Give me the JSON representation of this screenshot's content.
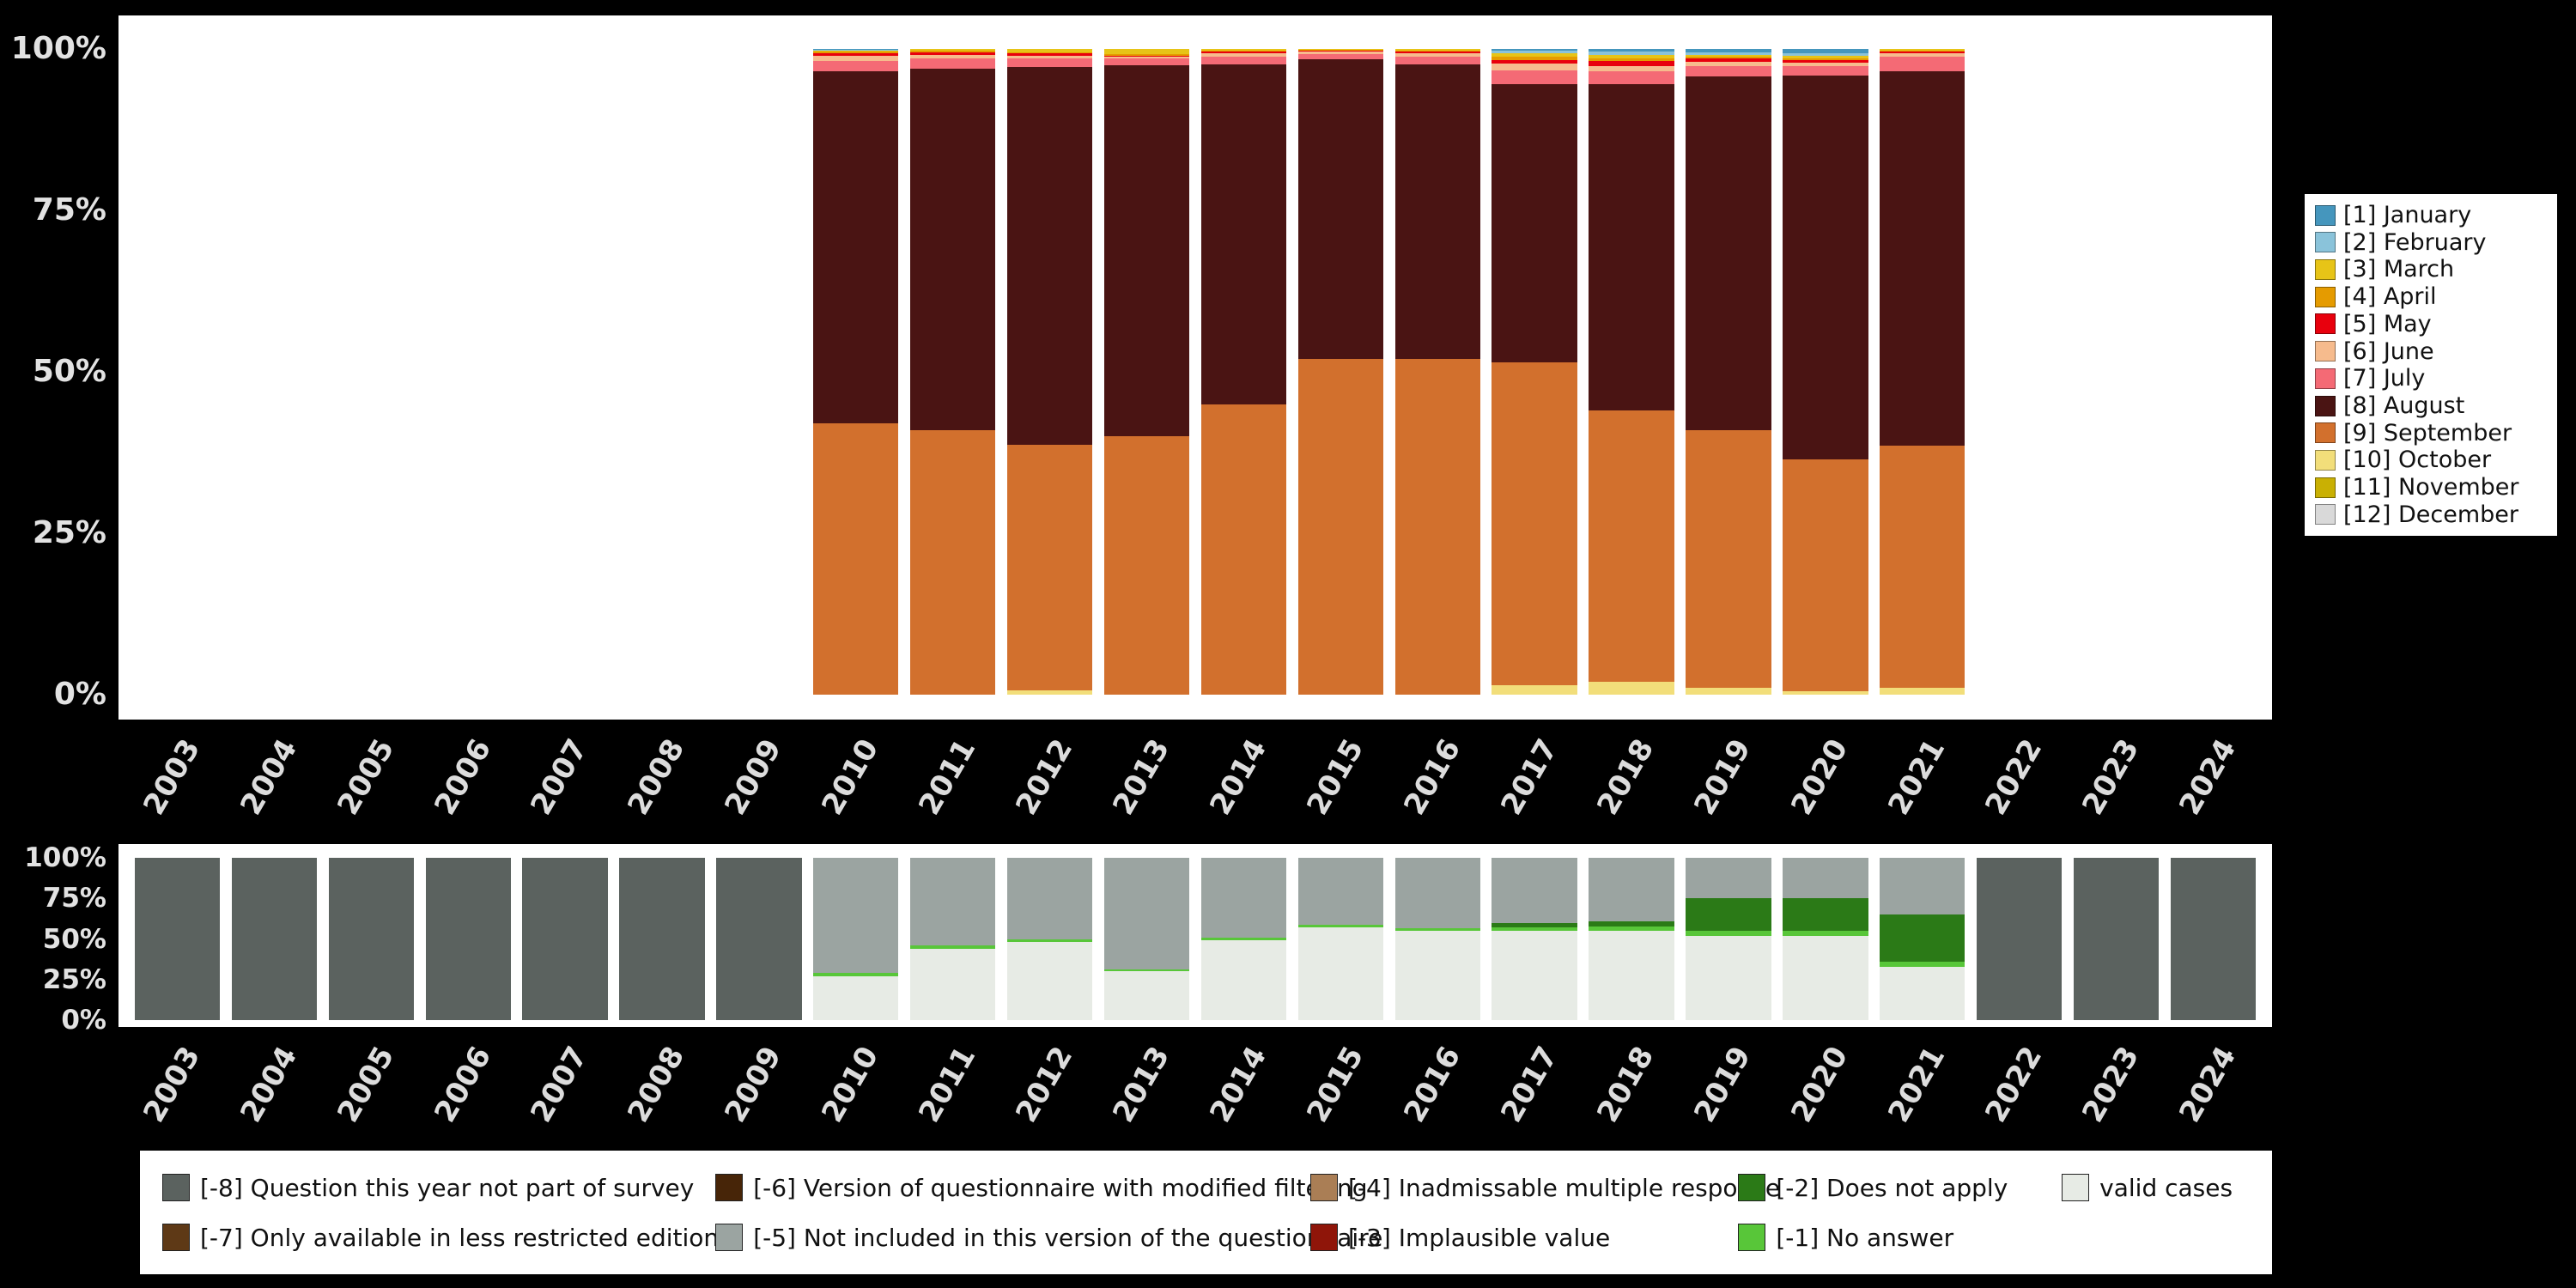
{
  "page": {
    "background": "#000000",
    "panel_background": "#ffffff",
    "axis_text_color": "#dcdcdc"
  },
  "chart_data": [
    {
      "id": "month-of-interview-by-year",
      "type": "bar",
      "stacked": true,
      "unit": "%",
      "ylim": [
        0,
        100
      ],
      "grid": false,
      "legend_position": "right",
      "y_ticks": [
        "100%",
        "75%",
        "50%",
        "25%",
        "0%"
      ],
      "categories": [
        "2003",
        "2004",
        "2005",
        "2006",
        "2007",
        "2008",
        "2009",
        "2010",
        "2011",
        "2012",
        "2013",
        "2014",
        "2015",
        "2016",
        "2017",
        "2018",
        "2019",
        "2020",
        "2021",
        "2022",
        "2023",
        "2024"
      ],
      "stack_order_bottom_to_top": [
        "[12] December",
        "[11] November",
        "[10] October",
        "[9] September",
        "[8] August",
        "[7] July",
        "[6] June",
        "[5] May",
        "[4] April",
        "[3] March",
        "[2] February",
        "[1] January"
      ],
      "series": [
        {
          "name": "[1] January",
          "color": "#4596bd",
          "values": [
            0,
            0,
            0,
            0,
            0,
            0,
            0,
            0.1,
            0,
            0,
            0,
            0,
            0,
            0,
            0.3,
            0.4,
            0.5,
            0.6,
            0,
            0,
            0,
            0
          ]
        },
        {
          "name": "[2] February",
          "color": "#8ac3da",
          "values": [
            0,
            0,
            0,
            0,
            0,
            0,
            0,
            0.1,
            0,
            0,
            0,
            0,
            0,
            0,
            0.4,
            0.5,
            0.4,
            0.5,
            0,
            0,
            0,
            0
          ]
        },
        {
          "name": "[3] March",
          "color": "#e7c417",
          "values": [
            0,
            0,
            0,
            0,
            0,
            0,
            0,
            0.2,
            0.2,
            0.5,
            0.8,
            0.2,
            0.1,
            0.2,
            0.5,
            0.5,
            0.3,
            0.3,
            0.2,
            0,
            0,
            0
          ]
        },
        {
          "name": "[4] April",
          "color": "#e59b00",
          "values": [
            0,
            0,
            0,
            0,
            0,
            0,
            0,
            0.3,
            0.3,
            0.2,
            0.2,
            0.2,
            0.1,
            0.2,
            0.5,
            0.5,
            0.3,
            0.3,
            0.2,
            0,
            0,
            0
          ]
        },
        {
          "name": "[5] May",
          "color": "#e8000d",
          "values": [
            0,
            0,
            0,
            0,
            0,
            0,
            0,
            0.4,
            0.4,
            0.3,
            0.2,
            0.3,
            0.2,
            0.3,
            0.6,
            0.7,
            0.5,
            0.4,
            0.3,
            0,
            0,
            0
          ]
        },
        {
          "name": "[6] June",
          "color": "#f6bb8d",
          "values": [
            0,
            0,
            0,
            0,
            0,
            0,
            0,
            0.7,
            0.6,
            0.4,
            0.3,
            0.5,
            0.4,
            0.5,
            1.0,
            0.8,
            0.7,
            0.6,
            0.5,
            0,
            0,
            0
          ]
        },
        {
          "name": "[7] July",
          "color": "#f46a75",
          "values": [
            0,
            0,
            0,
            0,
            0,
            0,
            0,
            1.7,
            1.5,
            1.4,
            1.0,
            1.2,
            0.8,
            1.2,
            2.2,
            2.1,
            1.6,
            1.4,
            2.3,
            0,
            0,
            0
          ]
        },
        {
          "name": "[8] August",
          "color": "#4a1413",
          "values": [
            0,
            0,
            0,
            0,
            0,
            0,
            0,
            54.5,
            56,
            58.5,
            57.5,
            52.6,
            46.4,
            45.6,
            43,
            50.5,
            54.7,
            59.4,
            58,
            0,
            0,
            0
          ]
        },
        {
          "name": "[9] September",
          "color": "#d2702d",
          "values": [
            0,
            0,
            0,
            0,
            0,
            0,
            0,
            42,
            41,
            38,
            40,
            45,
            52,
            52,
            50,
            42,
            40,
            36,
            37.5,
            0,
            0,
            0
          ]
        },
        {
          "name": "[10] October",
          "color": "#f2de7a",
          "values": [
            0,
            0,
            0,
            0,
            0,
            0,
            0,
            0,
            0,
            0.7,
            0,
            0,
            0,
            0,
            1.5,
            2,
            1,
            0.5,
            1,
            0,
            0,
            0
          ]
        },
        {
          "name": "[11] November",
          "color": "#c9b003",
          "values": [
            0,
            0,
            0,
            0,
            0,
            0,
            0,
            0,
            0,
            0,
            0,
            0,
            0,
            0,
            0,
            0,
            0,
            0,
            0,
            0,
            0,
            0
          ]
        },
        {
          "name": "[12] December",
          "color": "#d9d9d9",
          "values": [
            0,
            0,
            0,
            0,
            0,
            0,
            0,
            0,
            0,
            0,
            0,
            0,
            0,
            0,
            0,
            0,
            0,
            0,
            0,
            0,
            0,
            0
          ]
        }
      ]
    },
    {
      "id": "missing-values-by-year",
      "type": "bar",
      "stacked": true,
      "unit": "%",
      "ylim": [
        0,
        100
      ],
      "grid": false,
      "legend_position": "bottom",
      "y_ticks": [
        "100%",
        "75%",
        "50%",
        "25%",
        "0%"
      ],
      "categories": [
        "2003",
        "2004",
        "2005",
        "2006",
        "2007",
        "2008",
        "2009",
        "2010",
        "2011",
        "2012",
        "2013",
        "2014",
        "2015",
        "2016",
        "2017",
        "2018",
        "2019",
        "2020",
        "2021",
        "2022",
        "2023",
        "2024"
      ],
      "stack_order_bottom_to_top": [
        "valid cases",
        "[-1] No answer",
        "[-2] Does not apply",
        "[-3] Implausible value",
        "[-4] Inadmissable multiple response",
        "[-5] Not included in this version of the questionnaire",
        "[-6] Version of questionnaire with modified filtering",
        "[-7] Only available in less restricted edition",
        "[-8] Question this year not part of survey"
      ],
      "series": [
        {
          "name": "[-8] Question this year not part of survey",
          "color": "#5b625f",
          "values": [
            100,
            100,
            100,
            100,
            100,
            100,
            100,
            0,
            0,
            0,
            0,
            0,
            0,
            0,
            0,
            0,
            0,
            0,
            0,
            100,
            100,
            100
          ]
        },
        {
          "name": "[-7] Only available in less restricted edition",
          "color": "#5e3916",
          "values": [
            0,
            0,
            0,
            0,
            0,
            0,
            0,
            0,
            0,
            0,
            0,
            0,
            0,
            0,
            0,
            0,
            0,
            0,
            0,
            0,
            0,
            0
          ]
        },
        {
          "name": "[-6] Version of questionnaire with modified filtering",
          "color": "#472508",
          "values": [
            0,
            0,
            0,
            0,
            0,
            0,
            0,
            0,
            0,
            0,
            0,
            0,
            0,
            0,
            0,
            0,
            0,
            0,
            0,
            0,
            0,
            0
          ]
        },
        {
          "name": "[-5] Not included in this version of the questionnaire",
          "color": "#9ba4a1",
          "values": [
            0,
            0,
            0,
            0,
            0,
            0,
            0,
            71,
            54,
            50,
            69,
            49,
            41.5,
            43.5,
            40,
            39,
            25,
            25,
            35,
            0,
            0,
            0
          ]
        },
        {
          "name": "[-4] Inadmissable multiple response",
          "color": "#aa7e55",
          "values": [
            0,
            0,
            0,
            0,
            0,
            0,
            0,
            0,
            0,
            0,
            0,
            0,
            0,
            0,
            0,
            0,
            0,
            0,
            0,
            0,
            0,
            0
          ]
        },
        {
          "name": "[-3] Implausible value",
          "color": "#8f1509",
          "values": [
            0,
            0,
            0,
            0,
            0,
            0,
            0,
            0,
            0,
            0,
            0,
            0,
            0,
            0,
            0,
            0,
            0,
            0,
            0,
            0,
            0,
            0
          ]
        },
        {
          "name": "[-2] Does not apply",
          "color": "#2b7a17",
          "values": [
            0,
            0,
            0,
            0,
            0,
            0,
            0,
            0,
            0,
            0,
            0,
            0,
            0,
            0,
            3,
            3.5,
            20,
            20,
            29,
            0,
            0,
            0
          ]
        },
        {
          "name": "[-1] No answer",
          "color": "#58c639",
          "values": [
            0,
            0,
            0,
            0,
            0,
            0,
            0,
            2,
            2,
            2,
            1,
            2,
            1.5,
            1.5,
            2,
            2.5,
            3,
            3,
            3,
            0,
            0,
            0
          ]
        },
        {
          "name": "valid cases",
          "color": "#e7ebe5",
          "values": [
            0,
            0,
            0,
            0,
            0,
            0,
            0,
            27,
            44,
            48,
            30,
            49,
            57,
            55,
            55,
            55,
            52,
            52,
            33,
            0,
            0,
            0
          ]
        }
      ]
    }
  ]
}
